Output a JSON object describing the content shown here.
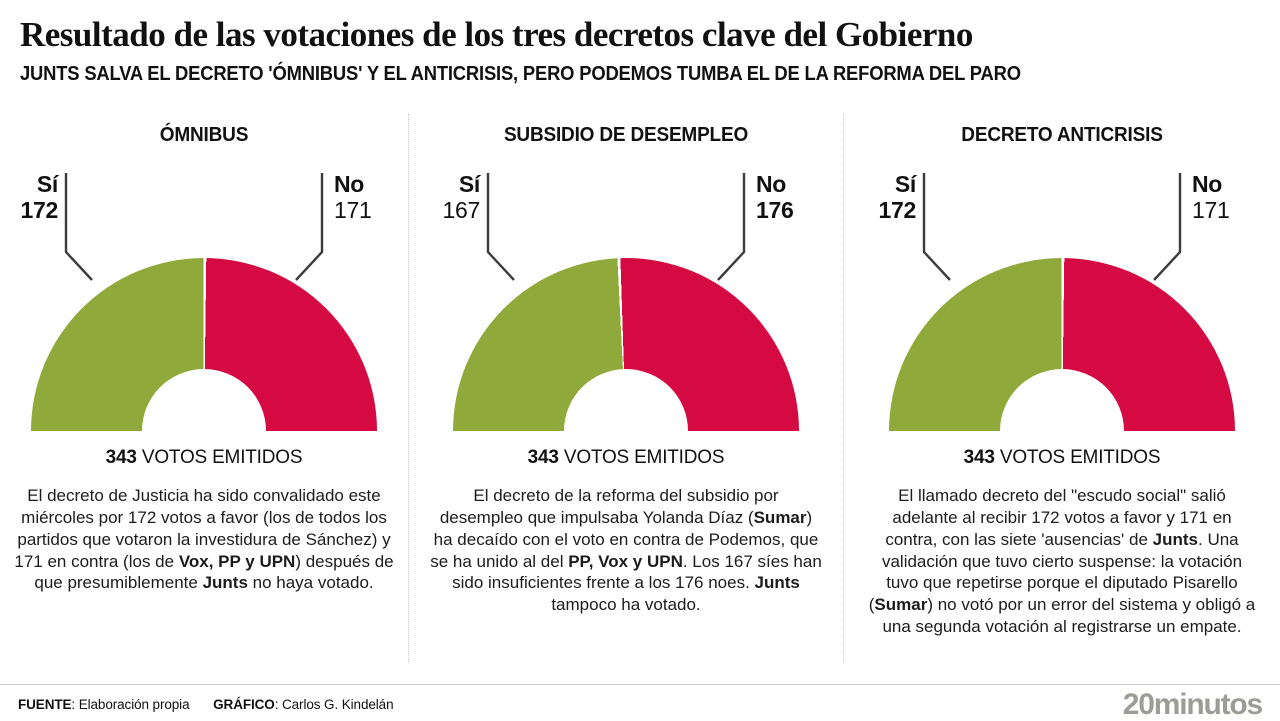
{
  "header": {
    "title": "Resultado de las votaciones de los tres decretos clave del Gobierno",
    "subtitle": "JUNTS SALVA EL DECRETO 'ÓMNIBUS' Y EL ANTICRISIS, PERO PODEMOS TUMBA EL DE LA REFORMA DEL PARO"
  },
  "colors": {
    "yes_green": "#8FA93A",
    "no_red": "#D50A43",
    "leader_line": "#3c3c3c",
    "divider": "#c6c6c6",
    "logo_gray": "#9d9d97"
  },
  "chart_data": [
    {
      "type": "pie",
      "subtype": "half-donut",
      "title": "ÓMNIBUS",
      "categories": [
        "Sí",
        "No"
      ],
      "values": [
        172,
        171
      ],
      "total": 343,
      "total_label": "343 VOTOS EMITIDOS",
      "colors": [
        "#8FA93A",
        "#D50A43"
      ],
      "winner": "Sí",
      "legend_position": "callout-labels"
    },
    {
      "type": "pie",
      "subtype": "half-donut",
      "title": "SUBSIDIO DE DESEMPLEO",
      "categories": [
        "Sí",
        "No"
      ],
      "values": [
        167,
        176
      ],
      "total": 343,
      "total_label": "343 VOTOS EMITIDOS",
      "colors": [
        "#8FA93A",
        "#D50A43"
      ],
      "winner": "No",
      "legend_position": "callout-labels"
    },
    {
      "type": "pie",
      "subtype": "half-donut",
      "title": "DECRETO ANTICRISIS",
      "categories": [
        "Sí",
        "No"
      ],
      "values": [
        172,
        171
      ],
      "total": 343,
      "total_label": "343 VOTOS EMITIDOS",
      "colors": [
        "#8FA93A",
        "#D50A43"
      ],
      "winner": "Sí",
      "legend_position": "callout-labels"
    }
  ],
  "panels": [
    {
      "title": "ÓMNIBUS",
      "yes_label": "Sí",
      "yes_value": "172",
      "no_label": "No",
      "no_value": "171",
      "winner": "yes",
      "total_value": "343",
      "total_text": " VOTOS EMITIDOS",
      "description_parts": [
        {
          "t": "El decreto de Justicia ha sido convalidado este miércoles por 172 votos a favor (los de todos los partidos que votaron la investidura de Sánchez) y 171 en contra (los de "
        },
        {
          "t": "Vox, PP y UPN",
          "b": true
        },
        {
          "t": ") después de que presumiblemente "
        },
        {
          "t": "Junts",
          "b": true
        },
        {
          "t": " no haya votado."
        }
      ]
    },
    {
      "title": "SUBSIDIO DE DESEMPLEO",
      "yes_label": "Sí",
      "yes_value": "167",
      "no_label": "No",
      "no_value": "176",
      "winner": "no",
      "total_value": "343",
      "total_text": " VOTOS EMITIDOS",
      "description_parts": [
        {
          "t": "El decreto de la reforma del subsidio por desempleo que impulsaba Yolanda Díaz ("
        },
        {
          "t": "Sumar",
          "b": true
        },
        {
          "t": ") ha decaído con el voto en contra de Podemos, que se ha unido al del "
        },
        {
          "t": "PP, Vox y UPN",
          "b": true
        },
        {
          "t": ". Los 167 síes han sido insuficientes frente a los 176 noes. "
        },
        {
          "t": "Junts",
          "b": true
        },
        {
          "t": " tampoco ha votado."
        }
      ]
    },
    {
      "title": "DECRETO ANTICRISIS",
      "yes_label": "Sí",
      "yes_value": "172",
      "no_label": "No",
      "no_value": "171",
      "winner": "yes",
      "total_value": "343",
      "total_text": " VOTOS EMITIDOS",
      "description_parts": [
        {
          "t": "El llamado decreto del \"escudo social\" salió adelante al recibir 172 votos a favor y 171 en contra, con las siete 'ausencias' de "
        },
        {
          "t": "Junts",
          "b": true
        },
        {
          "t": ". Una validación que tuvo cierto suspense: la votación tuvo que repetirse porque el diputado Pisarello ("
        },
        {
          "t": "Sumar",
          "b": true
        },
        {
          "t": ") no votó por un error del sistema y obligó a una segunda votación al registrarse un empate."
        }
      ]
    }
  ],
  "footer": {
    "source_label": "FUENTE",
    "source_value": ": Elaboración propia",
    "graphic_label": "GRÁFICO",
    "graphic_value": ": Carlos G. Kindelán",
    "logo": "20minutos"
  }
}
